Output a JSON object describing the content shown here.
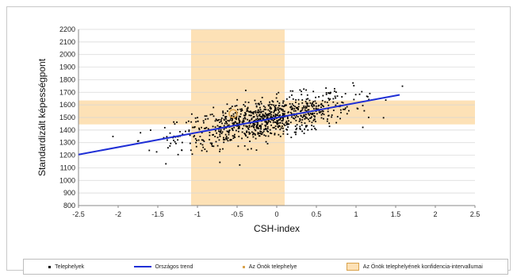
{
  "chart_data": {
    "type": "scatter",
    "title": "",
    "xlabel": "CSH-index",
    "ylabel": "Standardizált képességpont",
    "xlim": [
      -2.5,
      2.5
    ],
    "ylim": [
      800,
      2200
    ],
    "x_ticks": [
      "-2.5",
      "-2",
      "-1.5",
      "-1",
      "-0.5",
      "0",
      "0.5",
      "1",
      "1.5",
      "2",
      "2.5"
    ],
    "y_ticks": [
      "800",
      "900",
      "1000",
      "1100",
      "1200",
      "1300",
      "1400",
      "1500",
      "1600",
      "1700",
      "1800",
      "1900",
      "2000",
      "2100",
      "2200"
    ],
    "grid": "horizontal",
    "legend_position": "bottom",
    "series": [
      {
        "name": "Telephelyek",
        "kind": "points",
        "color": "#000000",
        "trend": {
          "x": [
            -2.5,
            1.55
          ],
          "y": [
            1205,
            1680
          ]
        },
        "spread": {
          "x_center": -0.15,
          "x_sd": 0.55,
          "noise_sd": 80,
          "count": 900
        }
      },
      {
        "name": "Országos trend",
        "kind": "line",
        "color": "#1f2fd6",
        "x": [
          -2.5,
          1.55
        ],
        "y": [
          1205,
          1680
        ]
      },
      {
        "name": "Az Önök telephelye",
        "kind": "point",
        "color": "#d9a24b",
        "x": -0.55,
        "y": 1530
      },
      {
        "name": "Az Önök telephelyének konfidencia-intervallumai",
        "kind": "band",
        "color": "#fde1b6",
        "x_range": [
          -1.08,
          0.1
        ],
        "y_range": [
          1445,
          1635
        ]
      }
    ]
  }
}
